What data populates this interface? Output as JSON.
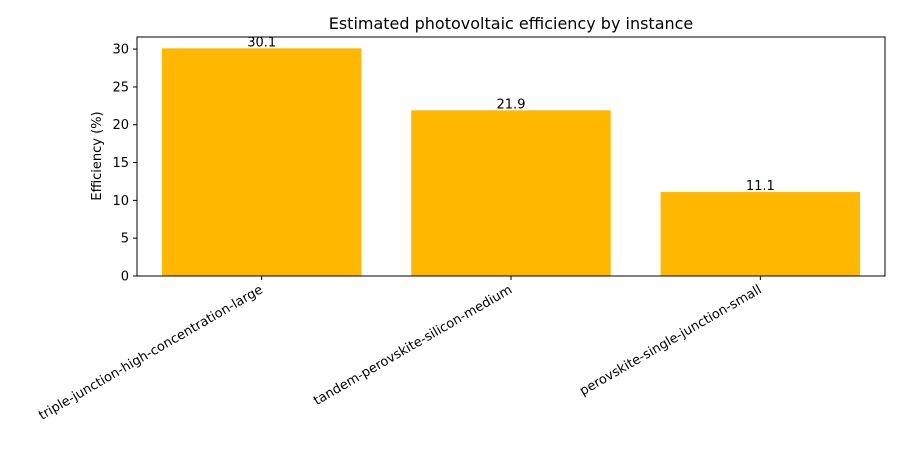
{
  "chart_data": {
    "type": "bar",
    "title": "Estimated photovoltaic efficiency by instance",
    "xlabel": "",
    "ylabel": "Efficiency (%)",
    "categories": [
      "triple-junction-high-concentration-large",
      "tandem-perovskite-silicon-medium",
      "perovskite-single-junction-small"
    ],
    "values": [
      30.1,
      21.9,
      11.1
    ],
    "data_labels": [
      "30.1",
      "21.9",
      "11.1"
    ],
    "ylim": [
      0,
      31.6
    ],
    "yticks": [
      0,
      5,
      10,
      15,
      20,
      25,
      30
    ],
    "bar_color": "#FFB700",
    "grid": false,
    "legend": "none"
  }
}
